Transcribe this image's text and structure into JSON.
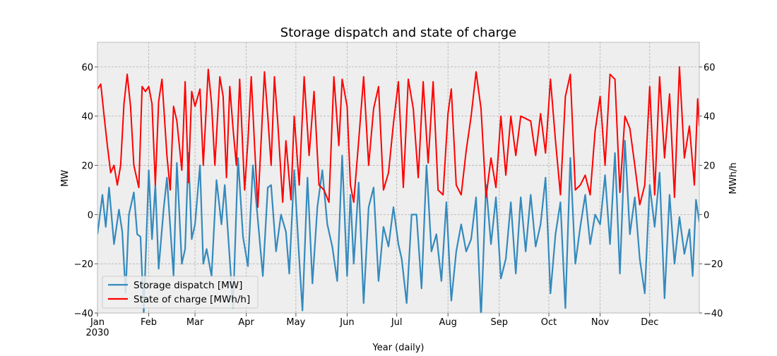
{
  "chart_data": {
    "type": "line",
    "title": "Storage dispatch and state of charge",
    "xlabel": "Year (daily)",
    "ylabel_left": "MW",
    "ylabel_right": "MWh/h",
    "x_range": [
      "2030-01-01",
      "2030-12-31"
    ],
    "ylim": [
      -40,
      70
    ],
    "y_ticks": [
      -40,
      -20,
      0,
      20,
      40,
      60
    ],
    "x_ticks": [
      {
        "date": "2030-01-01",
        "label": "Jan",
        "sublabel": "2030"
      },
      {
        "date": "2030-02-01",
        "label": "Feb"
      },
      {
        "date": "2030-03-01",
        "label": "Mar"
      },
      {
        "date": "2030-04-01",
        "label": "Apr"
      },
      {
        "date": "2030-05-01",
        "label": "May"
      },
      {
        "date": "2030-06-01",
        "label": "Jun"
      },
      {
        "date": "2030-07-01",
        "label": "Jul"
      },
      {
        "date": "2030-08-01",
        "label": "Aug"
      },
      {
        "date": "2030-09-01",
        "label": "Sep"
      },
      {
        "date": "2030-10-01",
        "label": "Oct"
      },
      {
        "date": "2030-11-01",
        "label": "Nov"
      },
      {
        "date": "2030-12-01",
        "label": "Dec"
      }
    ],
    "grid": true,
    "legend_position": "lower-left",
    "series": [
      {
        "name": "Storage dispatch [MW]",
        "color": "#348ABD",
        "axis": "left",
        "points": [
          [
            "2030-01-01",
            -8
          ],
          [
            "2030-01-04",
            8
          ],
          [
            "2030-01-06",
            -5
          ],
          [
            "2030-01-08",
            11
          ],
          [
            "2030-01-11",
            -12
          ],
          [
            "2030-01-14",
            2
          ],
          [
            "2030-01-16",
            -7
          ],
          [
            "2030-01-18",
            -32
          ],
          [
            "2030-01-20",
            0
          ],
          [
            "2030-01-23",
            9
          ],
          [
            "2030-01-25",
            -8
          ],
          [
            "2030-01-27",
            -9
          ],
          [
            "2030-01-29",
            -40
          ],
          [
            "2030-02-01",
            18
          ],
          [
            "2030-02-03",
            -10
          ],
          [
            "2030-02-05",
            12
          ],
          [
            "2030-02-07",
            -22
          ],
          [
            "2030-02-10",
            2
          ],
          [
            "2030-02-12",
            15
          ],
          [
            "2030-02-14",
            -5
          ],
          [
            "2030-02-16",
            -25
          ],
          [
            "2030-02-18",
            21
          ],
          [
            "2030-02-21",
            -20
          ],
          [
            "2030-02-23",
            -14
          ],
          [
            "2030-02-25",
            25
          ],
          [
            "2030-02-27",
            -10
          ],
          [
            "2030-03-01",
            -4
          ],
          [
            "2030-03-04",
            20
          ],
          [
            "2030-03-06",
            -20
          ],
          [
            "2030-03-08",
            -14
          ],
          [
            "2030-03-11",
            -25
          ],
          [
            "2030-03-14",
            14
          ],
          [
            "2030-03-17",
            -4
          ],
          [
            "2030-03-19",
            12
          ],
          [
            "2030-03-21",
            -8
          ],
          [
            "2030-03-24",
            -38
          ],
          [
            "2030-03-27",
            23
          ],
          [
            "2030-03-30",
            -9
          ],
          [
            "2030-04-02",
            -21
          ],
          [
            "2030-04-05",
            20
          ],
          [
            "2030-04-08",
            -2
          ],
          [
            "2030-04-11",
            -25
          ],
          [
            "2030-04-14",
            11
          ],
          [
            "2030-04-16",
            12
          ],
          [
            "2030-04-19",
            -15
          ],
          [
            "2030-04-22",
            0
          ],
          [
            "2030-04-25",
            -7
          ],
          [
            "2030-04-27",
            -24
          ],
          [
            "2030-04-30",
            18
          ],
          [
            "2030-05-03",
            -18
          ],
          [
            "2030-05-05",
            -39
          ],
          [
            "2030-05-08",
            15
          ],
          [
            "2030-05-11",
            -28
          ],
          [
            "2030-05-14",
            3
          ],
          [
            "2030-05-17",
            18
          ],
          [
            "2030-05-20",
            -4
          ],
          [
            "2030-05-23",
            -13
          ],
          [
            "2030-05-26",
            -27
          ],
          [
            "2030-05-29",
            24
          ],
          [
            "2030-06-01",
            -25
          ],
          [
            "2030-06-03",
            8
          ],
          [
            "2030-06-05",
            -20
          ],
          [
            "2030-06-08",
            13
          ],
          [
            "2030-06-11",
            -36
          ],
          [
            "2030-06-14",
            3
          ],
          [
            "2030-06-17",
            11
          ],
          [
            "2030-06-20",
            -27
          ],
          [
            "2030-06-23",
            -5
          ],
          [
            "2030-06-26",
            -13
          ],
          [
            "2030-06-29",
            3
          ],
          [
            "2030-07-02",
            -12
          ],
          [
            "2030-07-04",
            -18
          ],
          [
            "2030-07-07",
            -36
          ],
          [
            "2030-07-10",
            0
          ],
          [
            "2030-07-13",
            0
          ],
          [
            "2030-07-16",
            -30
          ],
          [
            "2030-07-19",
            20
          ],
          [
            "2030-07-22",
            -15
          ],
          [
            "2030-07-25",
            -8
          ],
          [
            "2030-07-28",
            -27
          ],
          [
            "2030-07-31",
            5
          ],
          [
            "2030-08-03",
            -35
          ],
          [
            "2030-08-06",
            -15
          ],
          [
            "2030-08-09",
            -4
          ],
          [
            "2030-08-12",
            -15
          ],
          [
            "2030-08-15",
            -10
          ],
          [
            "2030-08-18",
            7
          ],
          [
            "2030-08-21",
            -42
          ],
          [
            "2030-08-24",
            12
          ],
          [
            "2030-08-27",
            -12
          ],
          [
            "2030-08-30",
            7
          ],
          [
            "2030-09-02",
            -26
          ],
          [
            "2030-09-05",
            -18
          ],
          [
            "2030-09-08",
            5
          ],
          [
            "2030-09-11",
            -24
          ],
          [
            "2030-09-14",
            7
          ],
          [
            "2030-09-17",
            -15
          ],
          [
            "2030-09-20",
            8
          ],
          [
            "2030-09-23",
            -13
          ],
          [
            "2030-09-26",
            -4
          ],
          [
            "2030-09-29",
            15
          ],
          [
            "2030-10-02",
            -32
          ],
          [
            "2030-10-05",
            -8
          ],
          [
            "2030-10-08",
            5
          ],
          [
            "2030-10-11",
            -38
          ],
          [
            "2030-10-14",
            23
          ],
          [
            "2030-10-17",
            -20
          ],
          [
            "2030-10-20",
            -5
          ],
          [
            "2030-10-23",
            8
          ],
          [
            "2030-10-26",
            -12
          ],
          [
            "2030-10-29",
            0
          ],
          [
            "2030-11-01",
            -4
          ],
          [
            "2030-11-04",
            16
          ],
          [
            "2030-11-07",
            -12
          ],
          [
            "2030-11-10",
            25
          ],
          [
            "2030-11-13",
            -24
          ],
          [
            "2030-11-16",
            30
          ],
          [
            "2030-11-19",
            -8
          ],
          [
            "2030-11-22",
            7
          ],
          [
            "2030-11-25",
            -18
          ],
          [
            "2030-11-28",
            -32
          ],
          [
            "2030-12-01",
            12
          ],
          [
            "2030-12-04",
            -5
          ],
          [
            "2030-12-07",
            17
          ],
          [
            "2030-12-10",
            -34
          ],
          [
            "2030-12-13",
            8
          ],
          [
            "2030-12-16",
            -20
          ],
          [
            "2030-12-19",
            -1
          ],
          [
            "2030-12-22",
            -16
          ],
          [
            "2030-12-25",
            -6
          ],
          [
            "2030-12-27",
            -25
          ],
          [
            "2030-12-29",
            6
          ],
          [
            "2030-12-31",
            -3
          ]
        ]
      },
      {
        "name": "State of charge [MWh/h]",
        "color": "#ff0000",
        "axis": "right",
        "points": [
          [
            "2030-01-01",
            51
          ],
          [
            "2030-01-03",
            53
          ],
          [
            "2030-01-05",
            40
          ],
          [
            "2030-01-07",
            28
          ],
          [
            "2030-01-09",
            17
          ],
          [
            "2030-01-11",
            20
          ],
          [
            "2030-01-13",
            12
          ],
          [
            "2030-01-15",
            20
          ],
          [
            "2030-01-17",
            45
          ],
          [
            "2030-01-19",
            57
          ],
          [
            "2030-01-21",
            44
          ],
          [
            "2030-01-23",
            20
          ],
          [
            "2030-01-26",
            11
          ],
          [
            "2030-01-28",
            52
          ],
          [
            "2030-01-30",
            50
          ],
          [
            "2030-02-01",
            52
          ],
          [
            "2030-02-03",
            45
          ],
          [
            "2030-02-05",
            12
          ],
          [
            "2030-02-07",
            46
          ],
          [
            "2030-02-09",
            55
          ],
          [
            "2030-02-12",
            24
          ],
          [
            "2030-02-14",
            10
          ],
          [
            "2030-02-16",
            44
          ],
          [
            "2030-02-18",
            38
          ],
          [
            "2030-02-21",
            18
          ],
          [
            "2030-02-23",
            54
          ],
          [
            "2030-02-25",
            13
          ],
          [
            "2030-02-27",
            50
          ],
          [
            "2030-03-01",
            44
          ],
          [
            "2030-03-04",
            51
          ],
          [
            "2030-03-06",
            20
          ],
          [
            "2030-03-09",
            59
          ],
          [
            "2030-03-11",
            45
          ],
          [
            "2030-03-13",
            20
          ],
          [
            "2030-03-16",
            56
          ],
          [
            "2030-03-18",
            48
          ],
          [
            "2030-03-20",
            15
          ],
          [
            "2030-03-22",
            52
          ],
          [
            "2030-03-24",
            35
          ],
          [
            "2030-03-26",
            20
          ],
          [
            "2030-03-28",
            55
          ],
          [
            "2030-03-31",
            10
          ],
          [
            "2030-04-02",
            30
          ],
          [
            "2030-04-04",
            56
          ],
          [
            "2030-04-06",
            28
          ],
          [
            "2030-04-08",
            3
          ],
          [
            "2030-04-10",
            30
          ],
          [
            "2030-04-12",
            58
          ],
          [
            "2030-04-14",
            40
          ],
          [
            "2030-04-16",
            20
          ],
          [
            "2030-04-18",
            56
          ],
          [
            "2030-04-20",
            38
          ],
          [
            "2030-04-23",
            5
          ],
          [
            "2030-04-25",
            30
          ],
          [
            "2030-04-28",
            6
          ],
          [
            "2030-04-30",
            40
          ],
          [
            "2030-05-03",
            12
          ],
          [
            "2030-05-06",
            56
          ],
          [
            "2030-05-09",
            24
          ],
          [
            "2030-05-12",
            50
          ],
          [
            "2030-05-15",
            12
          ],
          [
            "2030-05-18",
            10
          ],
          [
            "2030-05-21",
            5
          ],
          [
            "2030-05-24",
            56
          ],
          [
            "2030-05-27",
            28
          ],
          [
            "2030-05-29",
            55
          ],
          [
            "2030-06-01",
            44
          ],
          [
            "2030-06-03",
            12
          ],
          [
            "2030-06-05",
            5
          ],
          [
            "2030-06-08",
            30
          ],
          [
            "2030-06-11",
            56
          ],
          [
            "2030-06-14",
            20
          ],
          [
            "2030-06-17",
            43
          ],
          [
            "2030-06-20",
            52
          ],
          [
            "2030-06-23",
            10
          ],
          [
            "2030-06-26",
            17
          ],
          [
            "2030-06-29",
            37
          ],
          [
            "2030-07-02",
            54
          ],
          [
            "2030-07-05",
            11
          ],
          [
            "2030-07-08",
            55
          ],
          [
            "2030-07-11",
            43
          ],
          [
            "2030-07-14",
            15
          ],
          [
            "2030-07-17",
            54
          ],
          [
            "2030-07-20",
            21
          ],
          [
            "2030-07-23",
            54
          ],
          [
            "2030-07-26",
            10
          ],
          [
            "2030-07-29",
            8
          ],
          [
            "2030-08-01",
            41
          ],
          [
            "2030-08-03",
            51
          ],
          [
            "2030-08-06",
            12
          ],
          [
            "2030-08-09",
            8
          ],
          [
            "2030-08-12",
            26
          ],
          [
            "2030-08-15",
            40
          ],
          [
            "2030-08-18",
            58
          ],
          [
            "2030-08-21",
            43
          ],
          [
            "2030-08-24",
            7
          ],
          [
            "2030-08-27",
            23
          ],
          [
            "2030-08-30",
            11
          ],
          [
            "2030-09-02",
            40
          ],
          [
            "2030-09-05",
            16
          ],
          [
            "2030-09-08",
            40
          ],
          [
            "2030-09-11",
            24
          ],
          [
            "2030-09-14",
            40
          ],
          [
            "2030-09-17",
            39
          ],
          [
            "2030-09-20",
            38
          ],
          [
            "2030-09-23",
            24
          ],
          [
            "2030-09-26",
            41
          ],
          [
            "2030-09-29",
            25
          ],
          [
            "2030-10-02",
            55
          ],
          [
            "2030-10-05",
            30
          ],
          [
            "2030-10-08",
            8
          ],
          [
            "2030-10-11",
            48
          ],
          [
            "2030-10-14",
            57
          ],
          [
            "2030-10-17",
            10
          ],
          [
            "2030-10-20",
            12
          ],
          [
            "2030-10-23",
            16
          ],
          [
            "2030-10-26",
            8
          ],
          [
            "2030-10-29",
            34
          ],
          [
            "2030-11-01",
            48
          ],
          [
            "2030-11-04",
            20
          ],
          [
            "2030-11-07",
            57
          ],
          [
            "2030-11-10",
            55
          ],
          [
            "2030-11-13",
            9
          ],
          [
            "2030-11-16",
            40
          ],
          [
            "2030-11-19",
            35
          ],
          [
            "2030-11-22",
            20
          ],
          [
            "2030-11-25",
            4
          ],
          [
            "2030-11-28",
            12
          ],
          [
            "2030-12-01",
            52
          ],
          [
            "2030-12-04",
            8
          ],
          [
            "2030-12-07",
            56
          ],
          [
            "2030-12-10",
            23
          ],
          [
            "2030-12-13",
            49
          ],
          [
            "2030-12-16",
            7
          ],
          [
            "2030-12-19",
            60
          ],
          [
            "2030-12-22",
            23
          ],
          [
            "2030-12-25",
            36
          ],
          [
            "2030-12-28",
            12
          ],
          [
            "2030-12-30",
            47
          ],
          [
            "2030-12-31",
            36
          ]
        ]
      }
    ]
  }
}
